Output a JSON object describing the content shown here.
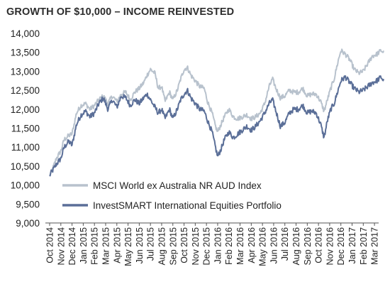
{
  "chart_data": {
    "type": "line",
    "title": "GROWTH OF $10,000 – INCOME REINVESTED",
    "xlabel": "",
    "ylabel": "",
    "ylim": [
      9000,
      14000
    ],
    "yticks": [
      "14,000",
      "13,500",
      "13,000",
      "12,500",
      "12,000",
      "11,500",
      "11,000",
      "10,500",
      "10,000",
      "9,500",
      "9,000"
    ],
    "ytick_values": [
      14000,
      13500,
      13000,
      12500,
      12000,
      11500,
      11000,
      10500,
      10000,
      9500,
      9000
    ],
    "categories": [
      "Oct 2014",
      "Nov 2014",
      "Dec 2014",
      "Jan 2015",
      "Feb 2015",
      "Mar 2015",
      "Apr 2015",
      "May 2015",
      "Jun 2015",
      "Jul 2015",
      "Aug 2015",
      "Sep 2015",
      "Oct 2015",
      "Nov 2015",
      "Dec 2015",
      "Jan 2016",
      "Feb 2016",
      "Mar 2016",
      "Apr 2016",
      "May 2016",
      "Jun 2016",
      "Jul 2016",
      "Aug 2016",
      "Sep 2016",
      "Oct 2016",
      "Nov 2016",
      "Dec 2016",
      "Jan 2017",
      "Feb 2017",
      "Mar 2017"
    ],
    "grid": false,
    "legend": "bottom-left",
    "series": [
      {
        "name": "MSCI World ex Australia NR AUD Index",
        "color": "#b8c2cd",
        "anchors": [
          [
            0,
            10250
          ],
          [
            0.3,
            10450
          ],
          [
            0.6,
            10700
          ],
          [
            1.0,
            10900
          ],
          [
            1.3,
            11200
          ],
          [
            1.7,
            11300
          ],
          [
            2.0,
            11350
          ],
          [
            2.4,
            11900
          ],
          [
            2.8,
            12100
          ],
          [
            3.2,
            12150
          ],
          [
            3.6,
            12000
          ],
          [
            4.0,
            12100
          ],
          [
            4.4,
            12250
          ],
          [
            4.8,
            12350
          ],
          [
            5.2,
            12150
          ],
          [
            5.6,
            12350
          ],
          [
            6.0,
            12200
          ],
          [
            6.4,
            12400
          ],
          [
            6.8,
            12450
          ],
          [
            7.2,
            12250
          ],
          [
            7.6,
            12450
          ],
          [
            8.0,
            12550
          ],
          [
            8.4,
            12700
          ],
          [
            8.7,
            12900
          ],
          [
            9.0,
            13050
          ],
          [
            9.4,
            12950
          ],
          [
            9.7,
            12550
          ],
          [
            10.0,
            12600
          ],
          [
            10.3,
            12200
          ],
          [
            10.7,
            12450
          ],
          [
            11.0,
            12250
          ],
          [
            11.4,
            12500
          ],
          [
            11.7,
            12800
          ],
          [
            12.0,
            13050
          ],
          [
            12.3,
            13100
          ],
          [
            12.6,
            12900
          ],
          [
            13.0,
            12750
          ],
          [
            13.4,
            12600
          ],
          [
            13.8,
            12550
          ],
          [
            14.1,
            12200
          ],
          [
            14.5,
            11900
          ],
          [
            14.8,
            11550
          ],
          [
            15.0,
            11400
          ],
          [
            15.3,
            11600
          ],
          [
            15.6,
            11800
          ],
          [
            16.0,
            12000
          ],
          [
            16.4,
            11800
          ],
          [
            16.8,
            11750
          ],
          [
            17.2,
            11800
          ],
          [
            17.6,
            11850
          ],
          [
            18.0,
            11750
          ],
          [
            18.4,
            11800
          ],
          [
            18.8,
            11900
          ],
          [
            19.2,
            12150
          ],
          [
            19.6,
            12600
          ],
          [
            19.9,
            12800
          ],
          [
            20.2,
            12550
          ],
          [
            20.6,
            12300
          ],
          [
            21.0,
            12350
          ],
          [
            21.4,
            12500
          ],
          [
            21.8,
            12450
          ],
          [
            22.2,
            12450
          ],
          [
            22.6,
            12550
          ],
          [
            23.0,
            12350
          ],
          [
            23.4,
            12400
          ],
          [
            23.8,
            12400
          ],
          [
            24.2,
            12200
          ],
          [
            24.5,
            11950
          ],
          [
            24.8,
            12250
          ],
          [
            25.1,
            12550
          ],
          [
            25.4,
            12800
          ],
          [
            25.7,
            13200
          ],
          [
            26.0,
            13550
          ],
          [
            26.4,
            13450
          ],
          [
            26.8,
            13300
          ],
          [
            27.2,
            13050
          ],
          [
            27.6,
            12950
          ],
          [
            28.0,
            13000
          ],
          [
            28.4,
            13200
          ],
          [
            28.8,
            13400
          ],
          [
            29.2,
            13450
          ],
          [
            29.6,
            13550
          ],
          [
            29.8,
            13500
          ]
        ]
      },
      {
        "name": "InvestSMART International Equities Portfolio",
        "color": "#5b6f98",
        "anchors": [
          [
            0,
            10250
          ],
          [
            0.3,
            10400
          ],
          [
            0.6,
            10550
          ],
          [
            1.0,
            10700
          ],
          [
            1.3,
            11000
          ],
          [
            1.7,
            11150
          ],
          [
            2.0,
            11050
          ],
          [
            2.4,
            11600
          ],
          [
            2.8,
            11850
          ],
          [
            3.2,
            11950
          ],
          [
            3.6,
            11800
          ],
          [
            4.0,
            11900
          ],
          [
            4.4,
            12150
          ],
          [
            4.8,
            12300
          ],
          [
            5.2,
            12000
          ],
          [
            5.6,
            12250
          ],
          [
            6.0,
            12050
          ],
          [
            6.4,
            12350
          ],
          [
            6.8,
            12300
          ],
          [
            7.2,
            12100
          ],
          [
            7.6,
            12250
          ],
          [
            8.0,
            12150
          ],
          [
            8.4,
            12300
          ],
          [
            8.7,
            12400
          ],
          [
            9.0,
            12250
          ],
          [
            9.4,
            12050
          ],
          [
            9.7,
            11900
          ],
          [
            10.0,
            12000
          ],
          [
            10.3,
            11750
          ],
          [
            10.7,
            12000
          ],
          [
            11.0,
            11750
          ],
          [
            11.4,
            12000
          ],
          [
            11.7,
            12250
          ],
          [
            12.0,
            12400
          ],
          [
            12.3,
            12500
          ],
          [
            12.6,
            12300
          ],
          [
            13.0,
            12150
          ],
          [
            13.4,
            12000
          ],
          [
            13.8,
            11950
          ],
          [
            14.1,
            11700
          ],
          [
            14.5,
            11400
          ],
          [
            14.8,
            11000
          ],
          [
            15.0,
            10750
          ],
          [
            15.3,
            10950
          ],
          [
            15.6,
            11200
          ],
          [
            16.0,
            11400
          ],
          [
            16.4,
            11250
          ],
          [
            16.8,
            11350
          ],
          [
            17.2,
            11450
          ],
          [
            17.6,
            11550
          ],
          [
            18.0,
            11450
          ],
          [
            18.4,
            11550
          ],
          [
            18.8,
            11700
          ],
          [
            19.2,
            11900
          ],
          [
            19.6,
            12150
          ],
          [
            19.9,
            12250
          ],
          [
            20.2,
            11950
          ],
          [
            20.6,
            11550
          ],
          [
            21.0,
            11650
          ],
          [
            21.4,
            11900
          ],
          [
            21.8,
            12000
          ],
          [
            22.2,
            12000
          ],
          [
            22.6,
            12100
          ],
          [
            23.0,
            11900
          ],
          [
            23.4,
            11950
          ],
          [
            23.8,
            11900
          ],
          [
            24.2,
            11600
          ],
          [
            24.5,
            11250
          ],
          [
            24.8,
            11700
          ],
          [
            25.1,
            12000
          ],
          [
            25.4,
            12150
          ],
          [
            25.7,
            12450
          ],
          [
            26.0,
            12750
          ],
          [
            26.4,
            12850
          ],
          [
            26.8,
            12700
          ],
          [
            27.2,
            12550
          ],
          [
            27.6,
            12450
          ],
          [
            28.0,
            12500
          ],
          [
            28.4,
            12600
          ],
          [
            28.8,
            12700
          ],
          [
            29.2,
            12750
          ],
          [
            29.6,
            12850
          ],
          [
            29.8,
            12750
          ]
        ]
      }
    ]
  }
}
